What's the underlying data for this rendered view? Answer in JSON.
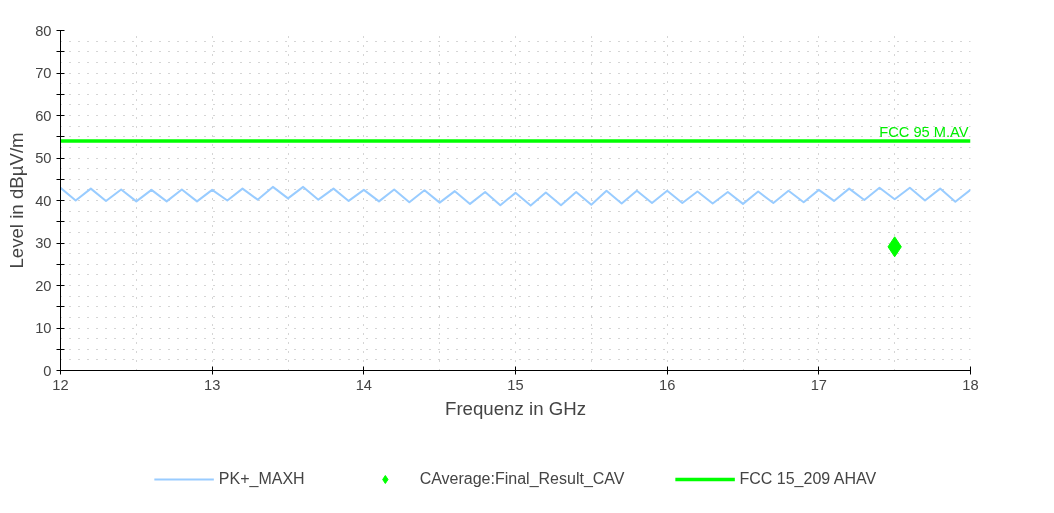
{
  "chart_data": {
    "type": "line",
    "xlabel": "Frequenz in GHz",
    "ylabel": "Level in dBµV/m",
    "xlim": [
      12,
      18
    ],
    "xticks": [
      12,
      13,
      14,
      15,
      16,
      17,
      18
    ],
    "ylim": [
      0,
      80
    ],
    "yticks": [
      0,
      {
        "value": 5,
        "label": null
      },
      10,
      {
        "value": 15,
        "label": null
      },
      20,
      {
        "value": 25,
        "label": null
      },
      30,
      {
        "value": 35,
        "label": null
      },
      40,
      {
        "value": 45,
        "label": null
      },
      50,
      {
        "value": 55,
        "label": null
      },
      60,
      {
        "value": 65,
        "label": null
      },
      70,
      {
        "value": 75,
        "label": null
      },
      80
    ],
    "grid": true,
    "legend": "bottom",
    "series": [
      {
        "name": "PK+_MAXH",
        "color": "#99ccff",
        "x": [
          12.0,
          12.1,
          12.2,
          12.3,
          12.4,
          12.5,
          12.6,
          12.7,
          12.8,
          12.9,
          13.0,
          13.1,
          13.2,
          13.3,
          13.4,
          13.5,
          13.6,
          13.7,
          13.8,
          13.9,
          14.0,
          14.1,
          14.2,
          14.3,
          14.4,
          14.5,
          14.6,
          14.7,
          14.8,
          14.9,
          15.0,
          15.1,
          15.2,
          15.3,
          15.4,
          15.5,
          15.6,
          15.7,
          15.8,
          15.9,
          16.0,
          16.1,
          16.2,
          16.3,
          16.4,
          16.5,
          16.6,
          16.7,
          16.8,
          16.9,
          17.0,
          17.1,
          17.2,
          17.3,
          17.4,
          17.5,
          17.6,
          17.7,
          17.8,
          17.9,
          18.0
        ],
        "values": [
          43,
          40,
          42.8,
          39.9,
          42.6,
          39.8,
          42.5,
          39.8,
          42.6,
          39.8,
          42.5,
          40,
          42.8,
          40.2,
          43.2,
          40.5,
          43.2,
          40.2,
          42.8,
          39.9,
          42.5,
          39.8,
          42.6,
          39.6,
          42.4,
          39.5,
          42.2,
          39.2,
          42,
          38.9,
          41.8,
          38.8,
          41.9,
          38.9,
          42,
          39,
          42.3,
          39.3,
          42.3,
          39.4,
          42.3,
          39.4,
          42.1,
          39.3,
          42,
          39.2,
          42.1,
          39.4,
          42.3,
          39.6,
          42.5,
          39.9,
          42.8,
          40.1,
          43,
          40.3,
          43,
          40,
          42.8,
          39.7,
          42.5
        ]
      },
      {
        "name": "CAverage:Final_Result_CAV",
        "type": "scatter",
        "marker": "diamond",
        "color": "#00ff00",
        "x": [
          17.5
        ],
        "values": [
          29.1
        ]
      },
      {
        "name": "FCC 15_209 AHAV",
        "color": "#00ff00",
        "x": [
          12,
          18
        ],
        "values": [
          54,
          54
        ]
      }
    ],
    "annotations": [
      {
        "text": "FCC 95 M.AV",
        "x": 18,
        "y": 54
      }
    ]
  }
}
